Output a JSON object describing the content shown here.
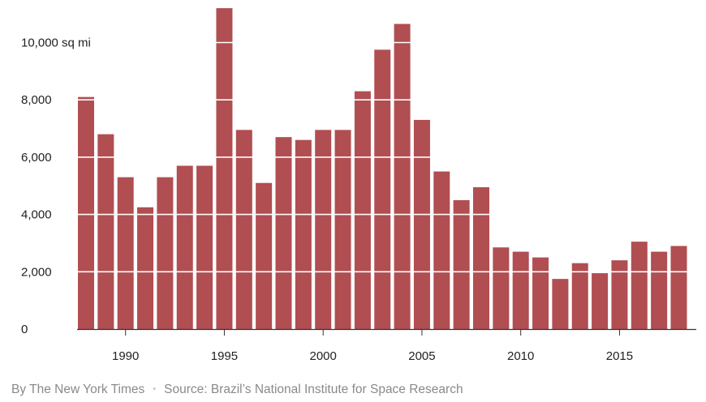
{
  "chart_data": {
    "type": "bar",
    "title": "",
    "xlabel": "",
    "ylabel": "",
    "ylim": [
      0,
      11000
    ],
    "y_ticks": [
      0,
      2000,
      4000,
      6000,
      8000,
      10000
    ],
    "y_tick_labels": [
      "0",
      "2,000",
      "4,000",
      "6,000",
      "8,000",
      "10,000 sq mi"
    ],
    "x_tick_years": [
      1990,
      1995,
      2000,
      2005,
      2010,
      2015
    ],
    "x_tick_labels": [
      "1990",
      "1995",
      "2000",
      "2005",
      "2010",
      "2015"
    ],
    "grid": "white horizontal lines over bars",
    "bar_color": "#b04e52",
    "categories": [
      1988,
      1989,
      1990,
      1991,
      1992,
      1993,
      1994,
      1995,
      1996,
      1997,
      1998,
      1999,
      2000,
      2001,
      2002,
      2003,
      2004,
      2005,
      2006,
      2007,
      2008,
      2009,
      2010,
      2011,
      2012,
      2013,
      2014,
      2015,
      2016,
      2017,
      2018
    ],
    "values": [
      8100,
      6800,
      5300,
      4250,
      5300,
      5700,
      5700,
      11200,
      6950,
      5100,
      6700,
      6600,
      6950,
      6950,
      8300,
      9750,
      10650,
      7300,
      5500,
      4500,
      4950,
      2850,
      2700,
      2500,
      1750,
      2300,
      1950,
      2400,
      3050,
      2700,
      2900
    ]
  },
  "footer": {
    "byline": "By The New York Times",
    "separator": "•",
    "source": "Source: Brazil’s National Institute for Space Research"
  }
}
